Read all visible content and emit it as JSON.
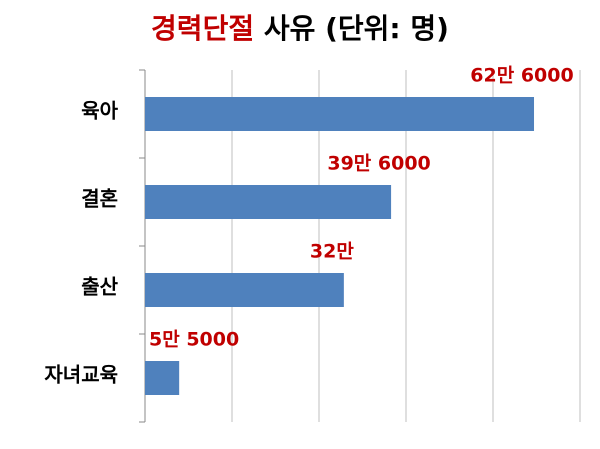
{
  "chart_data": {
    "type": "hbar",
    "title": {
      "highlight": "경력단절",
      "rest": "사유 (단위: 명)"
    },
    "categories": [
      "육아",
      "결혼",
      "출산",
      "자녀교육"
    ],
    "values": [
      626000,
      396000,
      320000,
      55000
    ],
    "value_labels": [
      "62만 6000",
      "39만 6000",
      "32만",
      "5만 5000"
    ],
    "color": "#4f81bd",
    "label_color": "#c00000",
    "title_color": "#c00000",
    "xlim": [
      0,
      700000
    ],
    "xticks": [
      0,
      140000,
      280000,
      420000,
      560000,
      700000
    ],
    "grid": true
  }
}
